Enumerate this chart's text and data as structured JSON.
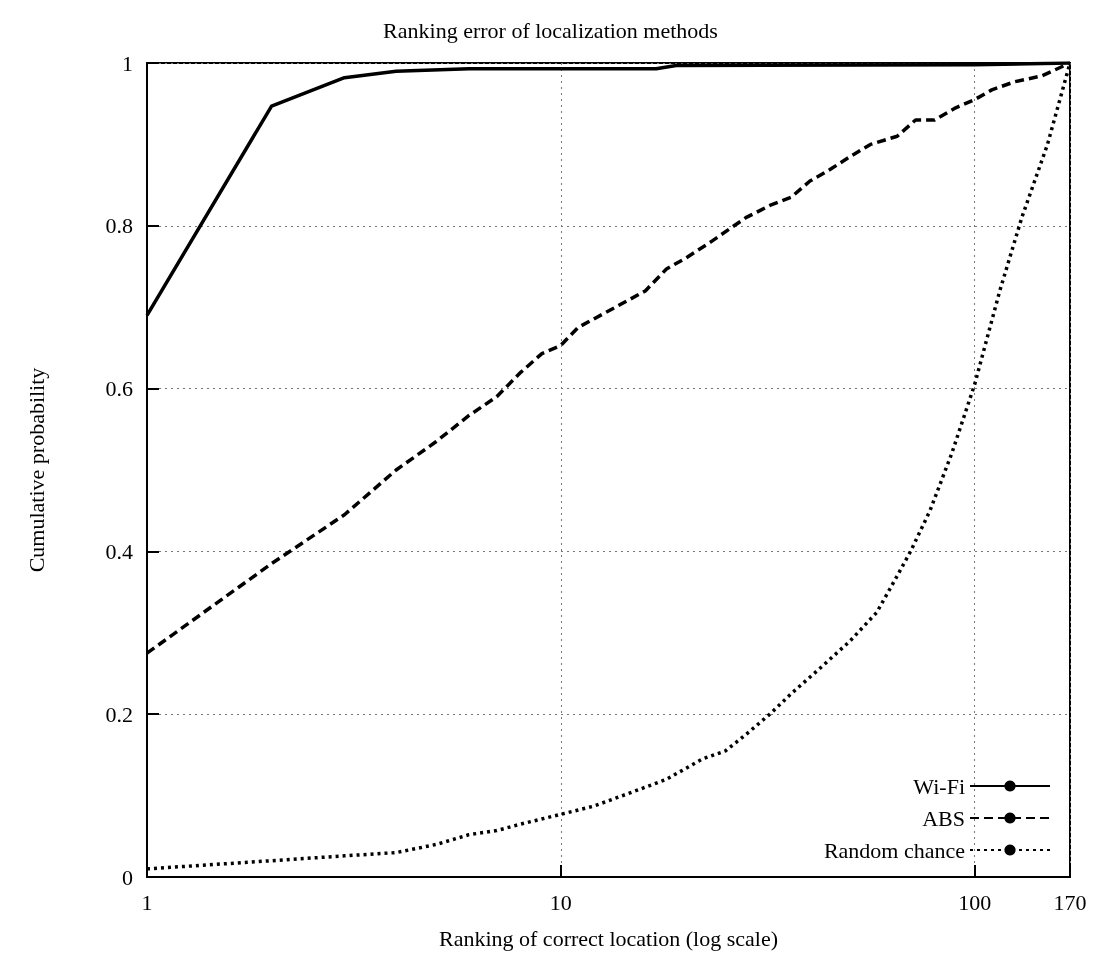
{
  "chart_data": {
    "type": "line",
    "title": "Ranking error of localization methods",
    "xlabel": "Ranking of correct location (log scale)",
    "ylabel": "Cumulative probability",
    "log": "x",
    "xlim": [
      1,
      170
    ],
    "xticks": [
      1,
      10,
      100,
      170
    ],
    "ylim": [
      0,
      1
    ],
    "yticks": [
      0,
      0.2,
      0.4,
      0.6,
      0.8,
      1
    ],
    "grid": true,
    "legend": "bottom right",
    "marker": "none",
    "series": [
      {
        "name": "Wi-Fi",
        "color": "#000000",
        "line_style": "solid",
        "x": [
          1,
          2,
          3,
          4,
          6,
          17,
          19,
          100,
          170
        ],
        "values": [
          0.69,
          0.947,
          0.982,
          0.99,
          0.993,
          0.993,
          0.997,
          0.998,
          1
        ]
      },
      {
        "name": "ABS",
        "color": "#000000",
        "line_style": "dashed",
        "x": [
          1,
          2,
          3,
          4,
          5,
          6,
          7,
          8,
          9,
          10,
          11,
          13,
          16,
          18,
          20,
          23,
          28,
          32,
          36,
          40,
          45,
          50,
          56,
          65,
          72,
          80,
          90,
          100,
          110,
          125,
          145,
          170
        ],
        "values": [
          0.275,
          0.385,
          0.445,
          0.5,
          0.535,
          0.567,
          0.59,
          0.62,
          0.643,
          0.653,
          0.675,
          0.695,
          0.72,
          0.747,
          0.76,
          0.78,
          0.81,
          0.825,
          0.835,
          0.855,
          0.87,
          0.885,
          0.9,
          0.91,
          0.93,
          0.93,
          0.945,
          0.955,
          0.967,
          0.977,
          0.984,
          1
        ]
      },
      {
        "name": "Random chance",
        "color": "#000000",
        "line_style": "dotted",
        "x": [
          1,
          2,
          3,
          4,
          5,
          6,
          7,
          8,
          10,
          12,
          15,
          18,
          22,
          25,
          28,
          32,
          36,
          42,
          50,
          58,
          65,
          70,
          78,
          88,
          100,
          115,
          130,
          150,
          170
        ],
        "values": [
          0.01,
          0.02,
          0.026,
          0.03,
          0.04,
          0.052,
          0.057,
          0.065,
          0.077,
          0.087,
          0.105,
          0.12,
          0.145,
          0.155,
          0.175,
          0.2,
          0.225,
          0.255,
          0.29,
          0.325,
          0.37,
          0.4,
          0.45,
          0.52,
          0.605,
          0.72,
          0.81,
          0.9,
          1
        ]
      }
    ]
  }
}
